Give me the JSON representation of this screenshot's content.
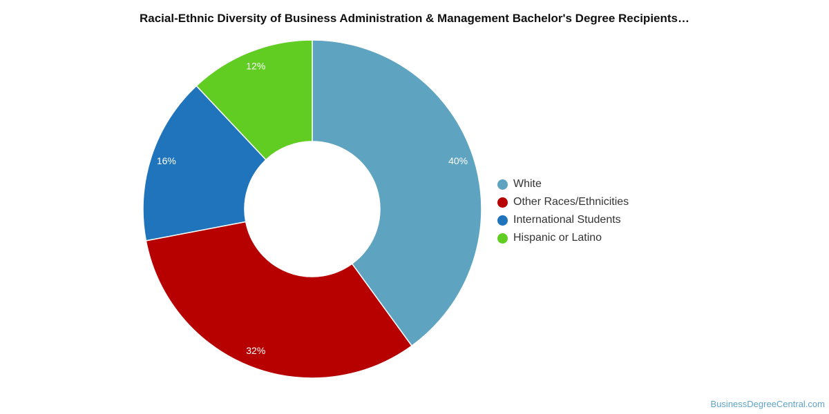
{
  "chart_data": {
    "type": "pie",
    "title": "Racial-Ethnic Diversity of Business Administration & Management Bachelor's Degree Recipients…",
    "legend_position": "right",
    "donut": true,
    "slices": [
      {
        "name": "White",
        "value": 40,
        "label": "40%",
        "color": "#5ea3c0"
      },
      {
        "name": "Other Races/Ethnicities",
        "value": 32,
        "label": "32%",
        "color": "#b70000"
      },
      {
        "name": "International Students",
        "value": 16,
        "label": "16%",
        "color": "#1f74bb"
      },
      {
        "name": "Hispanic or Latino",
        "value": 12,
        "label": "12%",
        "color": "#61cd22"
      }
    ]
  },
  "footer": {
    "source": "BusinessDegreeCentral.com"
  }
}
